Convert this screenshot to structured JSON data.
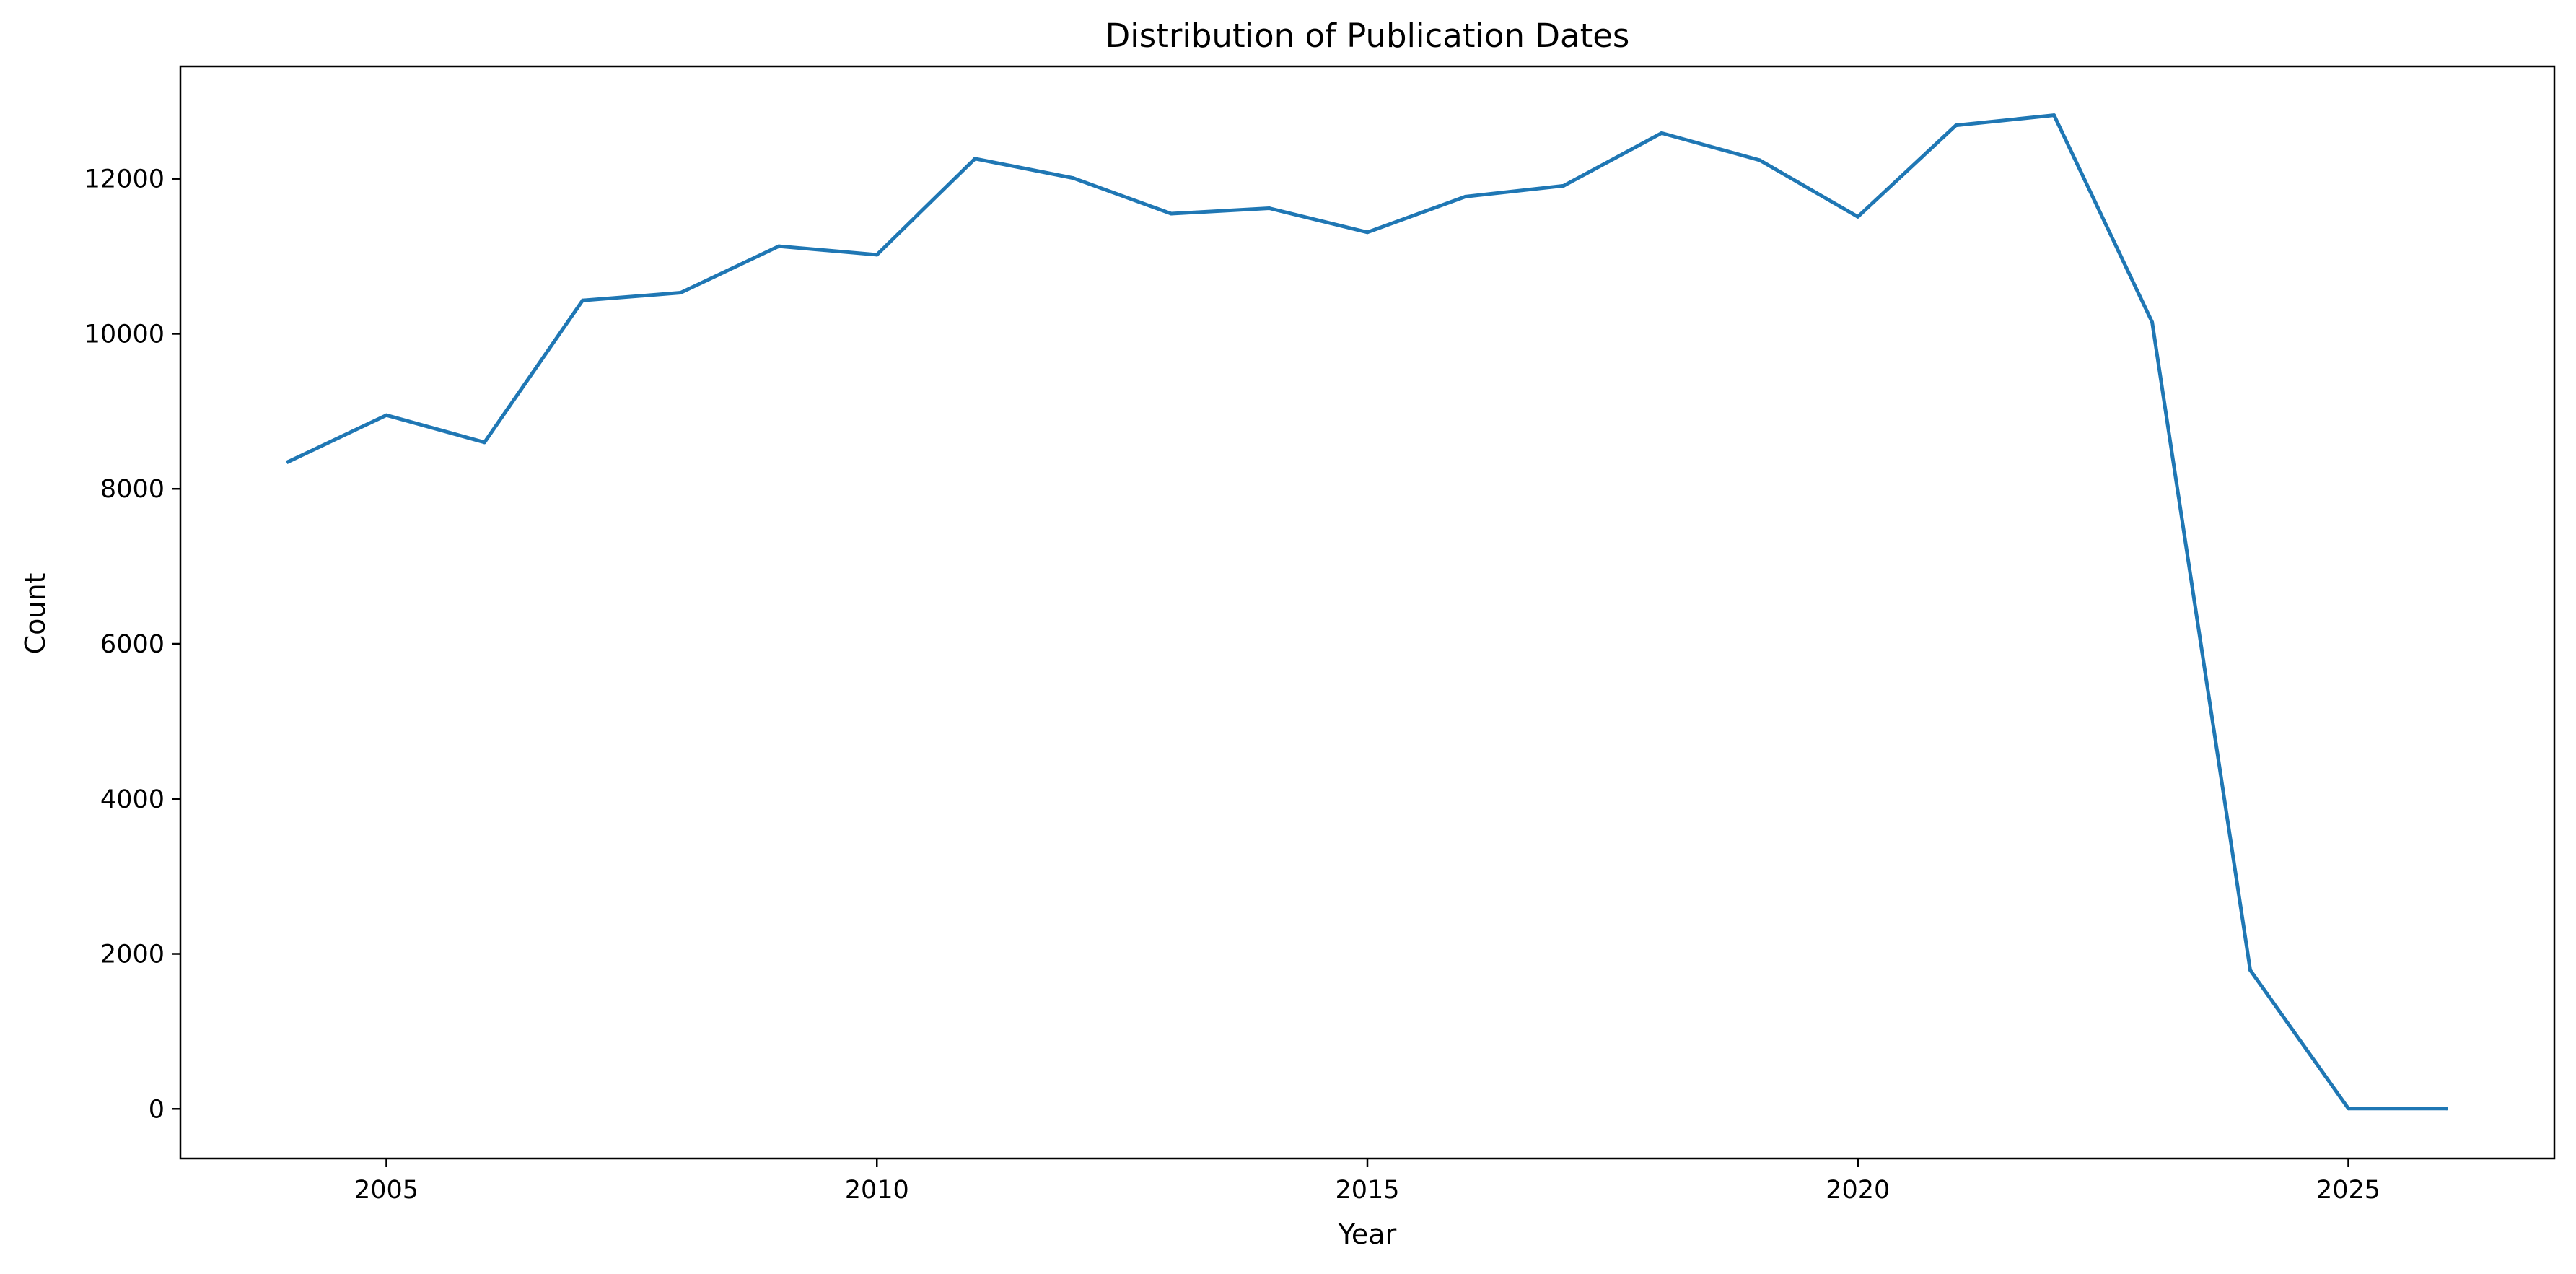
{
  "chart_data": {
    "type": "line",
    "title": "Distribution of Publication Dates",
    "xlabel": "Year",
    "ylabel": "Count",
    "xlim": [
      2002.9,
      2027.1
    ],
    "ylim": [
      -640,
      13450
    ],
    "xticks": [
      2005,
      2010,
      2015,
      2020,
      2025
    ],
    "yticks": [
      0,
      2000,
      4000,
      6000,
      8000,
      10000,
      12000
    ],
    "grid": false,
    "legend": "none",
    "series": [
      {
        "name": "Count",
        "color": "#1f77b4",
        "x": [
          2004,
          2005,
          2006,
          2007,
          2008,
          2009,
          2010,
          2011,
          2012,
          2013,
          2014,
          2015,
          2016,
          2017,
          2018,
          2019,
          2020,
          2021,
          2022,
          2023,
          2024,
          2025,
          2026
        ],
        "values": [
          8350,
          8950,
          8600,
          10430,
          10530,
          11130,
          11020,
          12260,
          12010,
          11550,
          11620,
          11310,
          11770,
          11910,
          12590,
          12240,
          11510,
          12690,
          12820,
          10150,
          1790,
          5,
          5
        ]
      }
    ]
  }
}
